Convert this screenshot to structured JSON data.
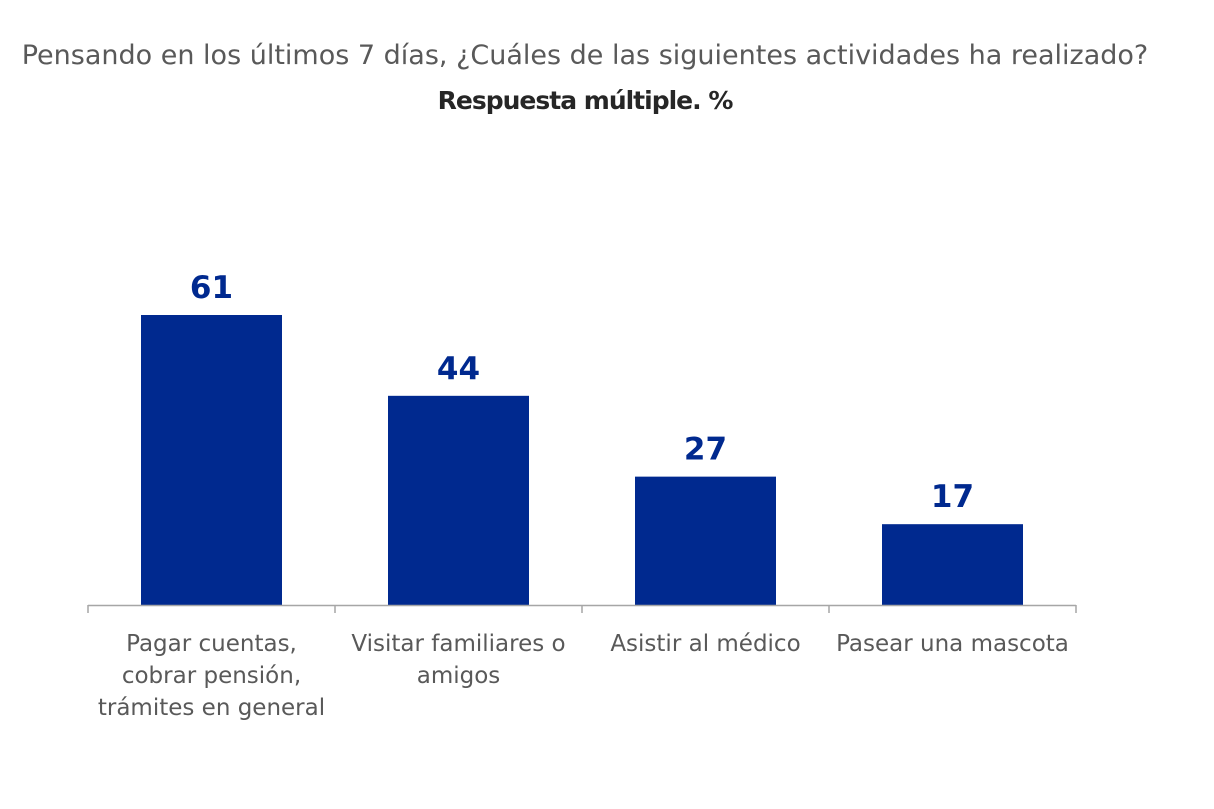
{
  "chart_data": {
    "type": "bar",
    "title": "Pensando en los últimos 7 días, ¿Cuáles de las siguientes actividades ha realizado?",
    "subtitle": "Respuesta múltiple. %",
    "categories": [
      "Pagar cuentas, cobrar pensión, trámites en general",
      "Visitar familiares o amigos",
      "Asistir al médico",
      "Pasear una mascota"
    ],
    "values": [
      61,
      44,
      27,
      17
    ],
    "ylim": [
      0,
      61
    ],
    "grid": false,
    "legend": "none",
    "bar_color": "#00298F",
    "label_color": "#00298F"
  }
}
